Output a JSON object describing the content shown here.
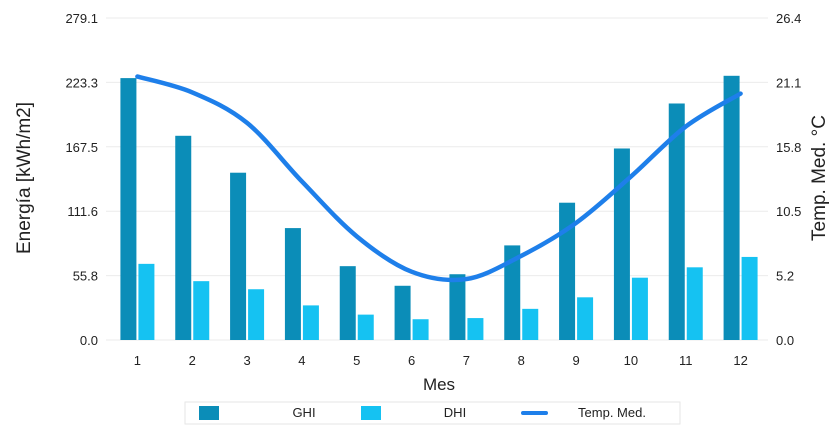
{
  "chart_data": {
    "type": "bar",
    "categories": [
      "1",
      "2",
      "3",
      "4",
      "5",
      "6",
      "7",
      "8",
      "9",
      "10",
      "11",
      "12"
    ],
    "series": [
      {
        "name": "GHI",
        "type": "bar",
        "axis": "left",
        "color": "#0B8DB8",
        "values": [
          227,
          177,
          145,
          97,
          64,
          47,
          57,
          82,
          119,
          166,
          205,
          229
        ]
      },
      {
        "name": "DHI",
        "type": "bar",
        "axis": "left",
        "color": "#15C2F2",
        "values": [
          66,
          51,
          44,
          30,
          22,
          18,
          19,
          27,
          37,
          54,
          63,
          72
        ]
      },
      {
        "name": "Temp. Med.",
        "type": "line",
        "axis": "right",
        "color": "#1E7FEA",
        "values": [
          21.6,
          20.3,
          17.8,
          13.0,
          8.5,
          5.6,
          5.0,
          6.9,
          9.6,
          13.4,
          17.5,
          20.2
        ]
      }
    ],
    "xlabel": "Mes",
    "ylabel": "Energía [kWh/m2]",
    "ylabel_right": "Temp. Med. °C",
    "ylim": [
      0,
      279.1
    ],
    "ylim_right": [
      0,
      26.4
    ],
    "yticks": [
      "0.0",
      "55.8",
      "111.6",
      "167.5",
      "223.3",
      "279.1"
    ],
    "yticks_right": [
      "0.0",
      "5.2",
      "10.5",
      "15.8",
      "21.1",
      "26.4"
    ],
    "grid": true,
    "legend_position": "bottom"
  }
}
